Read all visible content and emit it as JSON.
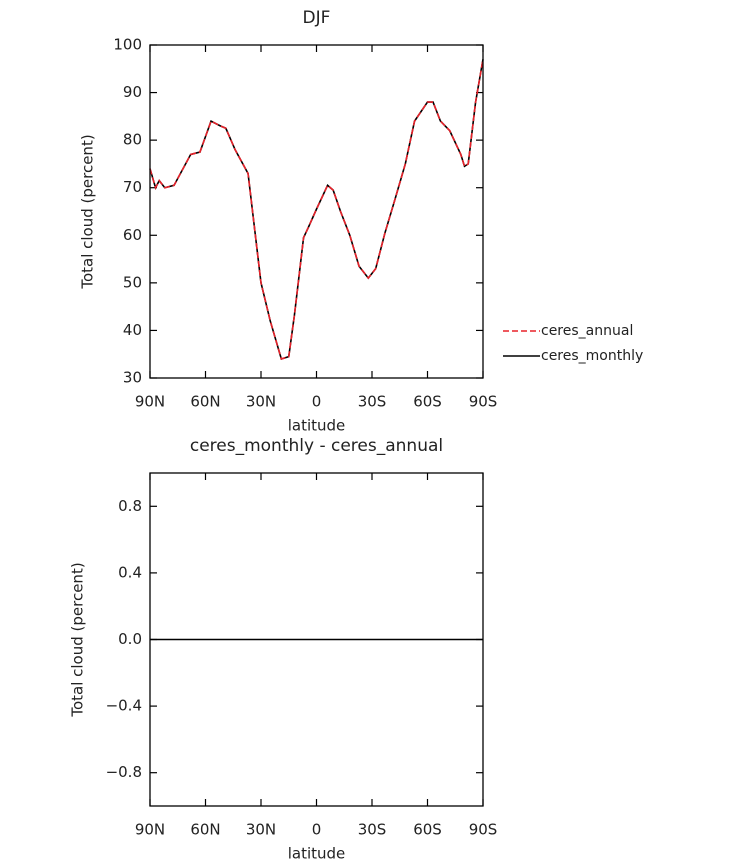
{
  "chart_data": [
    {
      "type": "line",
      "title": "DJF",
      "x_label": "latitude",
      "y_label": "Total cloud (percent)",
      "x": [
        90,
        87,
        85,
        82,
        77,
        68,
        63,
        57,
        52,
        49,
        44,
        37,
        30,
        25,
        19,
        15,
        12,
        7,
        4,
        0,
        -6,
        -9,
        -13,
        -18,
        -23,
        -28,
        -32,
        -37,
        -42,
        -48,
        -53,
        -60,
        -63,
        -67,
        -72,
        -78,
        -80,
        -82,
        -86,
        -90
      ],
      "series": [
        {
          "name": "ceres_annual",
          "color": "#e8222a",
          "line_style": "dashed",
          "values": [
            74,
            70,
            71.5,
            70,
            70.5,
            77,
            77.5,
            84,
            83,
            82.5,
            78,
            73,
            50,
            42,
            34,
            34.5,
            43,
            59.5,
            62,
            65.5,
            70.5,
            69.5,
            65,
            60,
            53.5,
            51,
            53,
            60.5,
            67,
            75,
            84,
            88,
            88,
            84,
            82,
            77,
            74.5,
            75,
            88,
            97
          ]
        },
        {
          "name": "ceres_monthly",
          "color": "#000000",
          "line_style": "solid",
          "values": [
            74,
            70,
            71.5,
            70,
            70.5,
            77,
            77.5,
            84,
            83,
            82.5,
            78,
            73,
            50,
            42,
            34,
            34.5,
            43,
            59.5,
            62,
            65.5,
            70.5,
            69.5,
            65,
            60,
            53.5,
            51,
            53,
            60.5,
            67,
            75,
            84,
            88,
            88,
            84,
            82,
            77,
            74.5,
            75,
            88,
            97
          ]
        }
      ],
      "xlim": [
        90,
        -90
      ],
      "xticks": [
        {
          "value": 90,
          "label": "90N"
        },
        {
          "value": 60,
          "label": "60N"
        },
        {
          "value": 30,
          "label": "30N"
        },
        0,
        {
          "value": -30,
          "label": "30S"
        },
        {
          "value": -60,
          "label": "60S"
        },
        {
          "value": -90,
          "label": "90S"
        }
      ],
      "ylim": [
        30,
        100
      ],
      "yticks": [
        30,
        40,
        50,
        60,
        70,
        80,
        90,
        100
      ],
      "legend": "right"
    },
    {
      "type": "line",
      "title": "ceres_monthly - ceres_annual",
      "x_label": "latitude",
      "y_label": "Total cloud (percent)",
      "x": [
        90,
        -90
      ],
      "series": [
        {
          "color": "#000000",
          "line_style": "solid",
          "values": [
            0,
            0
          ]
        }
      ],
      "xlim": [
        90,
        -90
      ],
      "xticks": [
        {
          "value": 90,
          "label": "90N"
        },
        {
          "value": 60,
          "label": "60N"
        },
        {
          "value": 30,
          "label": "30N"
        },
        0,
        {
          "value": -30,
          "label": "30S"
        },
        {
          "value": -60,
          "label": "60S"
        },
        {
          "value": -90,
          "label": "90S"
        }
      ],
      "ylim": [
        -1,
        1
      ],
      "yticks": [
        {
          "value": -0.8,
          "label": "−0.8"
        },
        {
          "value": -0.4,
          "label": "−0.4"
        },
        {
          "value": 0,
          "label": "0.0"
        },
        {
          "value": 0.4,
          "label": "0.4"
        },
        {
          "value": 0.8,
          "label": "0.8"
        }
      ]
    }
  ]
}
